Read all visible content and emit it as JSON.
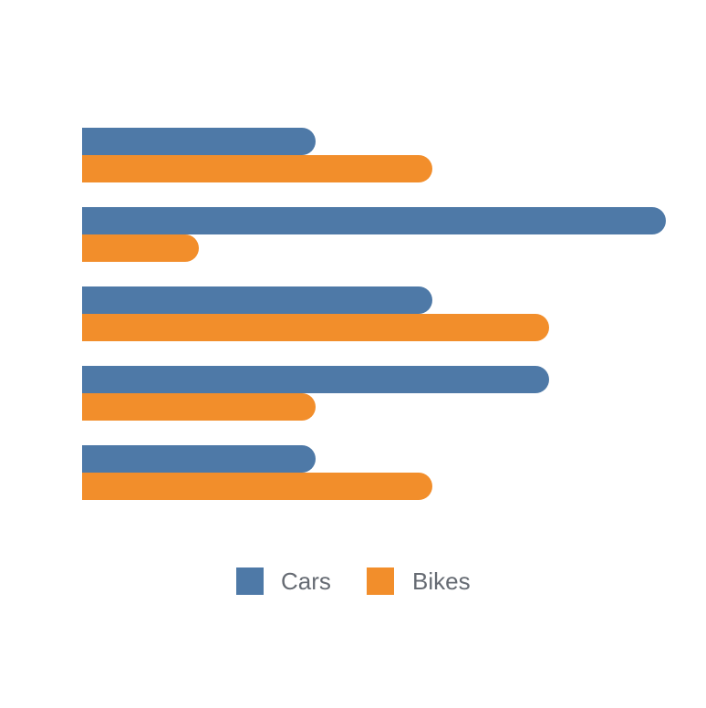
{
  "chart_data": {
    "type": "bar",
    "orientation": "horizontal",
    "categories": [
      "",
      "",
      "",
      "",
      ""
    ],
    "series": [
      {
        "name": "Cars",
        "color": "#4e79a7",
        "values": [
          2,
          5,
          3,
          4,
          2
        ]
      },
      {
        "name": "Bikes",
        "color": "#f28e2b",
        "values": [
          3,
          1,
          4,
          2,
          3
        ]
      }
    ],
    "xlim": [
      0,
      5
    ],
    "grid": false,
    "rounded_bar_ends": true,
    "legend": {
      "placement": "bottom-center"
    },
    "title": "",
    "xlabel": "",
    "ylabel": ""
  }
}
